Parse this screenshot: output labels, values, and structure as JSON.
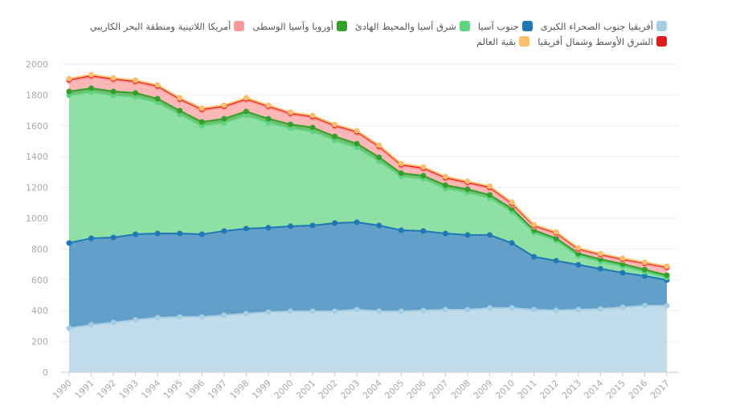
{
  "chart_data": {
    "type": "area",
    "stacked": true,
    "title": "",
    "xlabel": "",
    "ylabel": "",
    "ylim": [
      0,
      2000
    ],
    "yticks": [
      "0",
      "200",
      "400",
      "600",
      "800",
      "1000",
      "1200",
      "1400",
      "1600",
      "1800",
      "2000"
    ],
    "grid": true,
    "legend_position": "top",
    "x": [
      "1990",
      "1991",
      "1992",
      "1993",
      "1994",
      "1995",
      "1996",
      "1997",
      "1998",
      "1999",
      "2000",
      "2001",
      "2002",
      "2003",
      "2004",
      "2005",
      "2006",
      "2007",
      "2008",
      "2009",
      "2010",
      "2011",
      "2012",
      "2013",
      "2014",
      "2015",
      "2016",
      "2017"
    ],
    "series": [
      {
        "name": "أفريقيا جنوب الصحراء الكبرى",
        "color": "#a6cee3",
        "values": [
          286,
          307,
          323,
          339,
          354,
          359,
          359,
          370,
          380,
          390,
          396,
          396,
          396,
          406,
          396,
          396,
          401,
          406,
          406,
          417,
          417,
          406,
          401,
          406,
          411,
          422,
          432,
          432
        ]
      },
      {
        "name": "جنوب آسيا",
        "color": "#1f78b4",
        "values": [
          553,
          563,
          552,
          557,
          547,
          542,
          537,
          547,
          552,
          548,
          552,
          557,
          573,
          568,
          557,
          526,
          516,
          495,
          485,
          474,
          422,
          344,
          323,
          292,
          261,
          224,
          193,
          167
        ]
      },
      {
        "name": "شرق آسيا والمحيط الهادئ",
        "color": "#5fd37f",
        "values": [
          959,
          949,
          923,
          892,
          850,
          772,
          704,
          704,
          736,
          683,
          636,
          611,
          537,
          485,
          418,
          350,
          339,
          293,
          277,
          240,
          204,
          157,
          131,
          58,
          47,
          42,
          27,
          16
        ]
      },
      {
        "name": "أوروبا وآسيا الوسطى",
        "color": "#33a02c",
        "values": [
          25,
          25,
          25,
          25,
          25,
          25,
          25,
          25,
          25,
          25,
          25,
          25,
          25,
          25,
          25,
          20,
          20,
          20,
          20,
          20,
          20,
          15,
          15,
          15,
          15,
          15,
          15,
          15
        ]
      },
      {
        "name": "أمريكا اللاتينية ومنطقة البحر الكاريبي",
        "color": "#fb9a99",
        "values": [
          67,
          72,
          72,
          67,
          73,
          67,
          73,
          72,
          72,
          72,
          63,
          62,
          62,
          68,
          62,
          46,
          41,
          41,
          36,
          41,
          25,
          23,
          28,
          23,
          24,
          24,
          34,
          45
        ]
      },
      {
        "name": "الشرق الأوسط وشمال أفريقيا",
        "color": "#e31a1c",
        "values": [
          10,
          10,
          10,
          10,
          10,
          10,
          10,
          10,
          10,
          10,
          10,
          10,
          10,
          10,
          10,
          10,
          10,
          10,
          10,
          10,
          10,
          8,
          8,
          8,
          8,
          8,
          8,
          8
        ]
      },
      {
        "name": "بقية العالم",
        "color": "#fdbf6f",
        "values": [
          6,
          6,
          6,
          6,
          6,
          6,
          6,
          6,
          6,
          6,
          6,
          6,
          6,
          6,
          6,
          6,
          6,
          6,
          6,
          6,
          6,
          5,
          5,
          5,
          5,
          5,
          5,
          5
        ]
      }
    ]
  }
}
